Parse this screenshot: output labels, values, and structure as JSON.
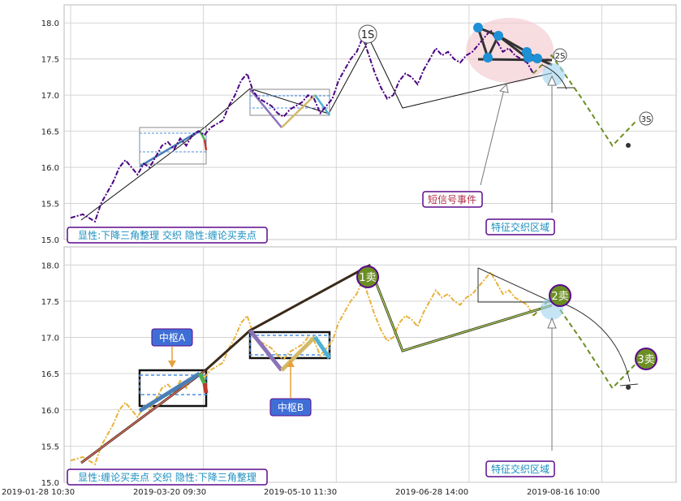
{
  "colors": {
    "price_top": "#4b0082",
    "price_bottom": "#e8b23a",
    "prediction": "#6b8e23",
    "grid": "#cccccc",
    "label_border": "#5b0a8c",
    "label_text": "#1a8fbf",
    "event_text": "#b0304a",
    "pivot_fill": "#3f6fd6",
    "marker_fill": "#6b8e23"
  },
  "chart_data": [
    {
      "type": "line",
      "panel": "top",
      "ylim": [
        15.0,
        18.25
      ],
      "yticks": [
        15.0,
        15.5,
        16.0,
        16.5,
        17.0,
        17.5,
        18.0
      ],
      "grid": true,
      "x_domain": [
        0,
        100
      ],
      "series": [
        {
          "kind": "price",
          "points": [
            [
              0,
              15.3
            ],
            [
              2,
              15.35
            ],
            [
              3,
              15.3
            ],
            [
              4,
              15.25
            ],
            [
              5,
              15.5
            ],
            [
              6,
              15.65
            ],
            [
              7,
              15.8
            ],
            [
              8,
              16.0
            ],
            [
              9,
              16.1
            ],
            [
              10,
              16.0
            ],
            [
              11,
              15.9
            ],
            [
              12,
              16.05
            ],
            [
              13,
              16.0
            ],
            [
              14,
              16.15
            ],
            [
              15,
              16.3
            ],
            [
              16,
              16.35
            ],
            [
              17,
              16.25
            ],
            [
              18,
              16.4
            ],
            [
              19,
              16.3
            ],
            [
              20,
              16.45
            ],
            [
              21,
              16.5
            ],
            [
              22,
              16.45
            ],
            [
              23,
              16.55
            ],
            [
              24,
              16.6
            ],
            [
              25,
              16.65
            ],
            [
              26,
              16.85
            ],
            [
              27,
              17.0
            ],
            [
              28,
              17.2
            ],
            [
              29,
              17.3
            ],
            [
              30,
              17.05
            ],
            [
              31,
              16.95
            ],
            [
              32,
              16.9
            ],
            [
              33,
              16.85
            ],
            [
              34,
              16.75
            ],
            [
              35,
              16.7
            ],
            [
              36,
              16.8
            ],
            [
              37,
              16.85
            ],
            [
              38,
              16.9
            ],
            [
              39,
              17.0
            ],
            [
              40,
              16.95
            ],
            [
              41,
              16.75
            ],
            [
              42,
              16.85
            ],
            [
              43,
              16.95
            ],
            [
              44,
              17.2
            ],
            [
              45,
              17.35
            ],
            [
              46,
              17.5
            ],
            [
              47,
              17.6
            ],
            [
              48,
              17.8
            ],
            [
              49,
              17.55
            ],
            [
              50,
              17.3
            ],
            [
              51,
              17.1
            ],
            [
              52,
              16.95
            ],
            [
              53,
              17.0
            ],
            [
              54,
              17.2
            ],
            [
              55,
              17.3
            ],
            [
              56,
              17.25
            ],
            [
              57,
              17.15
            ],
            [
              58,
              17.35
            ],
            [
              59,
              17.5
            ],
            [
              60,
              17.65
            ],
            [
              61,
              17.55
            ],
            [
              62,
              17.6
            ],
            [
              63,
              17.5
            ],
            [
              64,
              17.45
            ],
            [
              65,
              17.55
            ],
            [
              66,
              17.6
            ],
            [
              67,
              17.7
            ],
            [
              68,
              17.8
            ],
            [
              69,
              17.9
            ],
            [
              70,
              17.75
            ],
            [
              71,
              17.6
            ],
            [
              72,
              17.65
            ],
            [
              73,
              17.55
            ],
            [
              74,
              17.5
            ],
            [
              75,
              17.45
            ],
            [
              76,
              17.3
            ]
          ]
        },
        {
          "kind": "prediction",
          "points": [
            [
              76,
              17.3
            ],
            [
              79,
              17.55
            ],
            [
              84,
              16.95
            ],
            [
              89,
              16.3
            ],
            [
              93,
              16.65
            ]
          ]
        }
      ],
      "annotations": {
        "signals": [
          {
            "label": "1S",
            "x": 47,
            "y": 17.85
          },
          {
            "label": "2S",
            "x": 78,
            "y": 17.55
          },
          {
            "label": "3S",
            "x": 93,
            "y": 16.7
          }
        ],
        "event_label": "短信号事件",
        "region_label": "特征交织区域",
        "info_box": "显性:下降三角整理 交织 隐性:缠论买卖点"
      }
    },
    {
      "type": "line",
      "panel": "bottom",
      "ylim": [
        15.0,
        18.25
      ],
      "yticks": [
        15.0,
        15.5,
        16.0,
        16.5,
        17.0,
        17.5,
        18.0
      ],
      "grid": true,
      "x_domain": [
        0,
        100
      ],
      "x_tick_labels": [
        "2019-01-28 10:30",
        "2019-03-20 09:30",
        "2019-05-10 11:30",
        "2019-06-28 14:00",
        "2019-08-16 10:00"
      ],
      "series": [
        {
          "kind": "price",
          "points": [
            [
              0,
              15.3
            ],
            [
              2,
              15.35
            ],
            [
              3,
              15.3
            ],
            [
              4,
              15.25
            ],
            [
              5,
              15.5
            ],
            [
              6,
              15.65
            ],
            [
              7,
              15.8
            ],
            [
              8,
              16.0
            ],
            [
              9,
              16.1
            ],
            [
              10,
              16.0
            ],
            [
              11,
              15.9
            ],
            [
              12,
              16.05
            ],
            [
              13,
              16.0
            ],
            [
              14,
              16.15
            ],
            [
              15,
              16.3
            ],
            [
              16,
              16.35
            ],
            [
              17,
              16.25
            ],
            [
              18,
              16.4
            ],
            [
              19,
              16.3
            ],
            [
              20,
              16.45
            ],
            [
              21,
              16.5
            ],
            [
              22,
              16.45
            ],
            [
              23,
              16.55
            ],
            [
              24,
              16.6
            ],
            [
              25,
              16.65
            ],
            [
              26,
              16.85
            ],
            [
              27,
              17.0
            ],
            [
              28,
              17.2
            ],
            [
              29,
              17.3
            ],
            [
              30,
              17.05
            ],
            [
              31,
              16.95
            ],
            [
              32,
              16.9
            ],
            [
              33,
              16.85
            ],
            [
              34,
              16.75
            ],
            [
              35,
              16.7
            ],
            [
              36,
              16.8
            ],
            [
              37,
              16.85
            ],
            [
              38,
              16.9
            ],
            [
              39,
              17.0
            ],
            [
              40,
              16.95
            ],
            [
              41,
              16.75
            ],
            [
              42,
              16.85
            ],
            [
              43,
              16.95
            ],
            [
              44,
              17.2
            ],
            [
              45,
              17.35
            ],
            [
              46,
              17.5
            ],
            [
              47,
              17.6
            ],
            [
              48,
              17.8
            ],
            [
              49,
              17.55
            ],
            [
              50,
              17.3
            ],
            [
              51,
              17.1
            ],
            [
              52,
              16.95
            ],
            [
              53,
              17.0
            ],
            [
              54,
              17.2
            ],
            [
              55,
              17.3
            ],
            [
              56,
              17.25
            ],
            [
              57,
              17.15
            ],
            [
              58,
              17.35
            ],
            [
              59,
              17.5
            ],
            [
              60,
              17.65
            ],
            [
              61,
              17.55
            ],
            [
              62,
              17.6
            ],
            [
              63,
              17.5
            ],
            [
              64,
              17.45
            ],
            [
              65,
              17.55
            ],
            [
              66,
              17.6
            ],
            [
              67,
              17.7
            ],
            [
              68,
              17.8
            ],
            [
              69,
              17.9
            ],
            [
              70,
              17.75
            ],
            [
              71,
              17.6
            ],
            [
              72,
              17.65
            ],
            [
              73,
              17.55
            ],
            [
              74,
              17.5
            ],
            [
              75,
              17.45
            ],
            [
              76,
              17.3
            ]
          ]
        },
        {
          "kind": "prediction",
          "points": [
            [
              76,
              17.3
            ],
            [
              79,
              17.55
            ],
            [
              84,
              16.95
            ],
            [
              89,
              16.3
            ],
            [
              93,
              16.65
            ]
          ]
        }
      ],
      "annotations": {
        "signals": [
          {
            "label": "1卖",
            "x": 47,
            "y": 17.85
          },
          {
            "label": "2卖",
            "x": 78,
            "y": 17.55
          },
          {
            "label": "3卖",
            "x": 93,
            "y": 16.7
          }
        ],
        "pivot_a_label": "中枢A",
        "pivot_b_label": "中枢B",
        "region_label": "特征交织区域",
        "info_box": "显性:缠论买卖点 交织 隐性:下降三角整理"
      }
    }
  ]
}
